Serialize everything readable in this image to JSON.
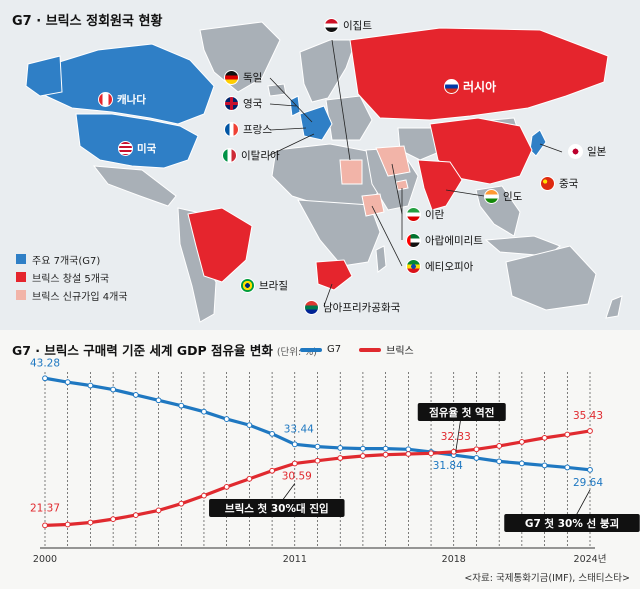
{
  "map": {
    "title": "G7 · 브릭스 정회원국 현황",
    "legend": [
      {
        "label": "주요 7개국(G7)",
        "color": "#2f7fc6"
      },
      {
        "label": "브릭스 창설 5개국",
        "color": "#e5252d"
      },
      {
        "label": "브릭스 신규가입 4개국",
        "color": "#f2b4a8"
      }
    ],
    "countries": [
      {
        "name": "캐나다",
        "group": "g7",
        "flag": "canada-flag-icon"
      },
      {
        "name": "미국",
        "group": "g7",
        "flag": "usa-flag-icon"
      },
      {
        "name": "독일",
        "group": "g7",
        "flag": "germany-flag-icon"
      },
      {
        "name": "영국",
        "group": "g7",
        "flag": "uk-flag-icon"
      },
      {
        "name": "프랑스",
        "group": "g7",
        "flag": "france-flag-icon"
      },
      {
        "name": "이탈리아",
        "group": "g7",
        "flag": "italy-flag-icon"
      },
      {
        "name": "일본",
        "group": "g7",
        "flag": "japan-flag-icon"
      },
      {
        "name": "러시아",
        "group": "brics_founding",
        "flag": "russia-flag-icon"
      },
      {
        "name": "중국",
        "group": "brics_founding",
        "flag": "china-flag-icon"
      },
      {
        "name": "인도",
        "group": "brics_founding",
        "flag": "india-flag-icon"
      },
      {
        "name": "브라질",
        "group": "brics_founding",
        "flag": "brazil-flag-icon"
      },
      {
        "name": "남아프리카공화국",
        "group": "brics_founding",
        "flag": "south-africa-flag-icon"
      },
      {
        "name": "이집트",
        "group": "brics_new",
        "flag": "egypt-flag-icon"
      },
      {
        "name": "이란",
        "group": "brics_new",
        "flag": "iran-flag-icon"
      },
      {
        "name": "아랍에미리트",
        "group": "brics_new",
        "flag": "uae-flag-icon"
      },
      {
        "name": "에티오피아",
        "group": "brics_new",
        "flag": "ethiopia-flag-icon"
      }
    ]
  },
  "chart_data": {
    "type": "line",
    "title": "G7 · 브릭스 구매력 기준 세계 GDP 점유율 변화",
    "unit": "(단위: %)",
    "x": [
      2000,
      2001,
      2002,
      2003,
      2004,
      2005,
      2006,
      2007,
      2008,
      2009,
      2010,
      2011,
      2012,
      2013,
      2014,
      2015,
      2016,
      2017,
      2018,
      2019,
      2020,
      2021,
      2022,
      2023,
      2024
    ],
    "x_tick_labels": [
      "2000",
      "2011",
      "2018",
      "2024년"
    ],
    "x_tick_values": [
      2000,
      2011,
      2018,
      2024
    ],
    "ylim": [
      18,
      46
    ],
    "series": [
      {
        "name": "G7",
        "color": "#1f78c1",
        "values": [
          43.28,
          42.7,
          42.2,
          41.6,
          40.8,
          40.0,
          39.2,
          38.3,
          37.2,
          36.3,
          35.0,
          33.44,
          33.1,
          32.9,
          32.8,
          32.8,
          32.7,
          32.3,
          31.84,
          31.4,
          30.9,
          30.6,
          30.3,
          30.0,
          29.64
        ]
      },
      {
        "name": "브릭스",
        "color": "#e02a2f",
        "values": [
          21.37,
          21.5,
          21.8,
          22.3,
          22.9,
          23.6,
          24.6,
          25.8,
          27.1,
          28.3,
          29.5,
          30.59,
          31.0,
          31.4,
          31.7,
          31.9,
          32.0,
          32.1,
          32.33,
          32.7,
          33.2,
          33.8,
          34.4,
          34.9,
          35.43
        ]
      }
    ],
    "labels": [
      {
        "text": "43.28",
        "series": 0,
        "index": 0
      },
      {
        "text": "33.44",
        "series": 0,
        "index": 11
      },
      {
        "text": "31.84",
        "series": 0,
        "index": 18
      },
      {
        "text": "29.64",
        "series": 0,
        "index": 24
      },
      {
        "text": "21.37",
        "series": 1,
        "index": 0
      },
      {
        "text": "30.59",
        "series": 1,
        "index": 11
      },
      {
        "text": "32.33",
        "series": 1,
        "index": 18
      },
      {
        "text": "35.43",
        "series": 1,
        "index": 24
      }
    ],
    "annotations": [
      "점유율 첫 역전",
      "브릭스 첫 30%대 진입",
      "G7 첫 30% 선 붕괴"
    ]
  },
  "source": "<자료: 국제통화기금(IMF), 스태티스타>"
}
